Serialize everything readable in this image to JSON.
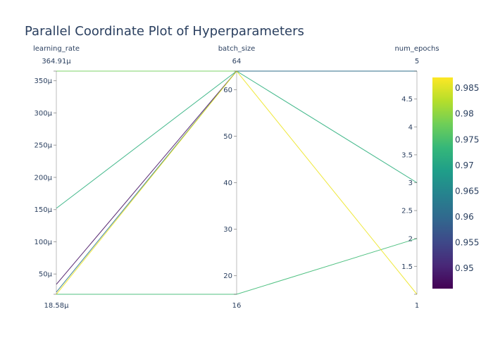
{
  "chart_data": {
    "type": "parallel_coordinates",
    "title": "Parallel Coordinate Plot of Hyperparameters",
    "axes": [
      {
        "name": "learning_rate",
        "range": [
          18.58,
          364.91
        ],
        "range_labels": [
          "18.58µ",
          "364.91µ"
        ],
        "ticks": [
          50,
          100,
          150,
          200,
          250,
          300,
          350
        ],
        "tick_labels": [
          "50µ",
          "100µ",
          "150µ",
          "200µ",
          "250µ",
          "300µ",
          "350µ"
        ]
      },
      {
        "name": "batch_size",
        "range": [
          16,
          64
        ],
        "range_labels": [
          "16",
          "64"
        ],
        "ticks": [
          20,
          30,
          40,
          50,
          60
        ],
        "tick_labels": [
          "20",
          "30",
          "40",
          "50",
          "60"
        ]
      },
      {
        "name": "num_epochs",
        "range": [
          1,
          5
        ],
        "range_labels": [
          "1",
          "5"
        ],
        "ticks": [
          1.5,
          2,
          2.5,
          3,
          3.5,
          4,
          4.5
        ],
        "tick_labels": [
          "1.5",
          "2",
          "2.5",
          "3",
          "3.5",
          "4",
          "4.5"
        ]
      }
    ],
    "lines": [
      {
        "values": [
          364.91,
          64,
          5
        ],
        "color_value": 0.978
      },
      {
        "values": [
          152,
          64,
          3
        ],
        "color_value": 0.972
      },
      {
        "values": [
          18.58,
          16,
          2
        ],
        "color_value": 0.974
      },
      {
        "values": [
          34,
          64,
          5
        ],
        "color_value": 0.948
      },
      {
        "values": [
          22,
          64,
          5
        ],
        "color_value": 0.962
      },
      {
        "values": [
          18.58,
          64,
          1
        ],
        "color_value": 0.986
      }
    ],
    "colorbar": {
      "range": [
        0.946,
        0.987
      ],
      "ticks": [
        0.95,
        0.955,
        0.96,
        0.965,
        0.97,
        0.975,
        0.98,
        0.985
      ],
      "tick_labels": [
        "0.95",
        "0.955",
        "0.96",
        "0.965",
        "0.97",
        "0.975",
        "0.98",
        "0.985"
      ],
      "colorscale": [
        "#440154",
        "#482878",
        "#3e4989",
        "#31688e",
        "#26828e",
        "#1f9e89",
        "#35b779",
        "#6ece58",
        "#b5de2b",
        "#fde725"
      ]
    }
  }
}
